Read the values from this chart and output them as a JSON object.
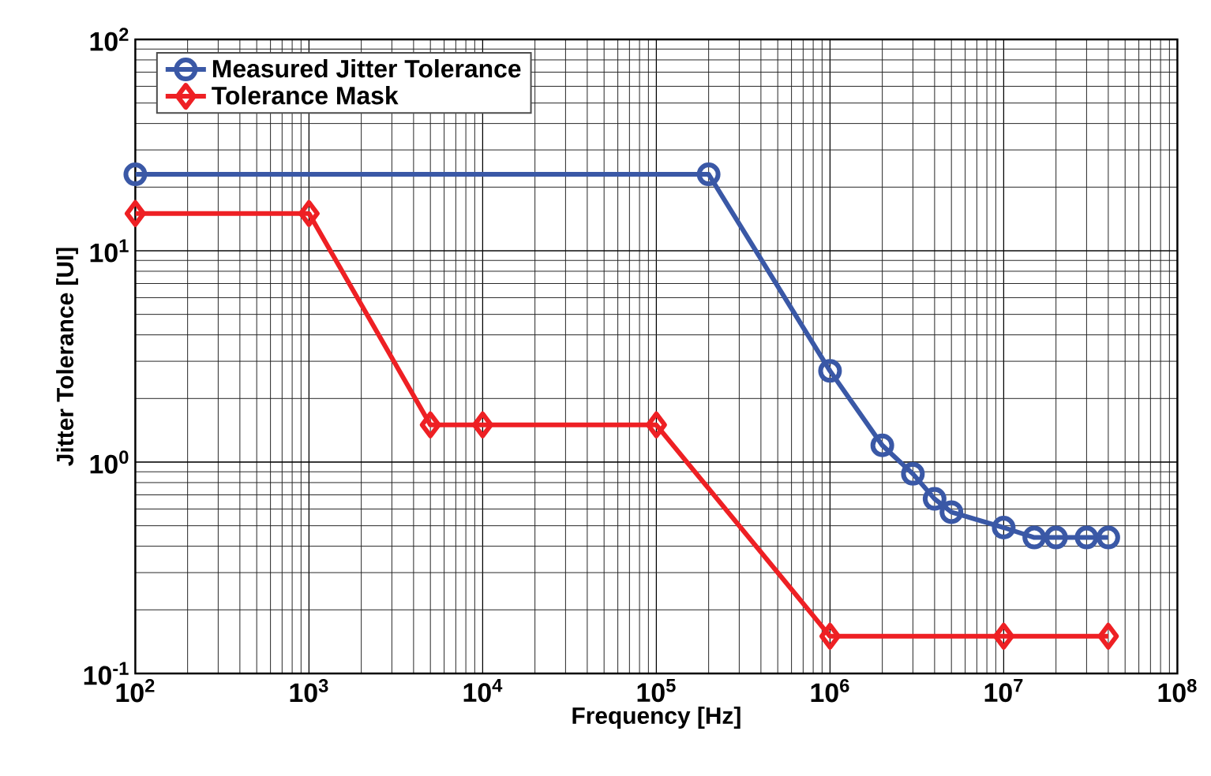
{
  "chart_data": {
    "type": "line",
    "xlabel": "Frequency [Hz]",
    "ylabel": "Jitter Tolerance [UI]",
    "log": "xy",
    "grid": true,
    "legend": "top left",
    "xlim": [
      100,
      100000000
    ],
    "ylim": [
      0.1,
      100
    ],
    "xticks": [
      {
        "value": 100,
        "label": "10$^{2}$"
      },
      {
        "value": 1000,
        "label": "10$^{3}$"
      },
      {
        "value": 10000,
        "label": "10$^{4}$"
      },
      {
        "value": 100000,
        "label": "10$^{5}$"
      },
      {
        "value": 1000000,
        "label": "10$^{6}$"
      },
      {
        "value": 10000000,
        "label": "10$^{7}$"
      },
      {
        "value": 100000000,
        "label": "10$^{8}$"
      }
    ],
    "yticks": [
      {
        "value": 0.1,
        "label": "10$^{-1}$"
      },
      {
        "value": 1,
        "label": "10$^{0}$"
      },
      {
        "value": 10,
        "label": "10$^{1}$"
      },
      {
        "value": 100,
        "label": "10$^{2}$"
      }
    ],
    "series": [
      {
        "name": "Measured Jitter Tolerance",
        "color": "#3a58a6",
        "marker": "circle",
        "x": [
          100,
          200000,
          1000000,
          2000000,
          3000000,
          4000000,
          5000000,
          10000000,
          15000000,
          20000000,
          30000000,
          40000000
        ],
        "values": [
          23,
          23,
          2.7,
          1.2,
          0.88,
          0.67,
          0.58,
          0.49,
          0.44,
          0.44,
          0.44,
          0.44
        ]
      },
      {
        "name": "Tolerance Mask",
        "color": "#ee2024",
        "marker": "diamond",
        "x": [
          100,
          1000,
          5000,
          10000,
          100000,
          1000000,
          10000000,
          40000000
        ],
        "values": [
          15,
          15,
          1.5,
          1.5,
          1.5,
          0.15,
          0.15,
          0.15
        ]
      }
    ]
  }
}
